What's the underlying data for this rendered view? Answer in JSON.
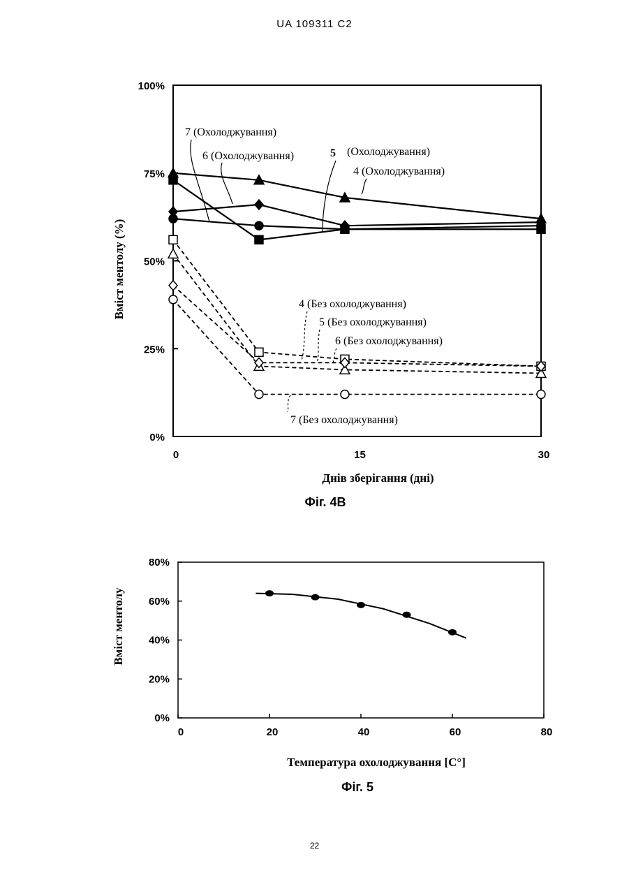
{
  "page": {
    "header": "UA  109311  C2",
    "page_number": "22"
  },
  "chart_data": [
    {
      "type": "line",
      "caption": "Фіг. 4В",
      "xlabel": "Днів зберігання (дні)",
      "ylabel": "Вміст ментолу (%)",
      "x_ticks": [
        "0",
        "15",
        "30"
      ],
      "y_ticks": [
        "0%",
        "25%",
        "50%",
        "75%",
        "100%"
      ],
      "xlim": [
        0,
        30
      ],
      "ylim": [
        0,
        100
      ],
      "x": [
        0,
        7,
        14,
        30
      ],
      "series": [
        {
          "name": "4 (Охолоджування)",
          "marker": "triangle",
          "filled": true,
          "dashed": false,
          "values": [
            75,
            73,
            68,
            62
          ]
        },
        {
          "name": "5 (Охолоджування)",
          "marker": "square",
          "filled": true,
          "dashed": false,
          "values": [
            73,
            56,
            59,
            59
          ]
        },
        {
          "name": "6 (Охолоджування)",
          "marker": "diamond",
          "filled": true,
          "dashed": false,
          "values": [
            64,
            66,
            60,
            61
          ]
        },
        {
          "name": "7 (Охолоджування)",
          "marker": "circle",
          "filled": true,
          "dashed": false,
          "values": [
            62,
            60,
            59,
            60
          ]
        },
        {
          "name": "4 (Без охолоджування)",
          "marker": "square",
          "filled": false,
          "dashed": true,
          "values": [
            56,
            24,
            22,
            20
          ]
        },
        {
          "name": "5 (Без охолоджування)",
          "marker": "triangle",
          "filled": false,
          "dashed": true,
          "values": [
            52,
            20,
            19,
            18
          ]
        },
        {
          "name": "6 (Без охолоджування)",
          "marker": "diamond",
          "filled": false,
          "dashed": true,
          "values": [
            43,
            21,
            21,
            20
          ]
        },
        {
          "name": "7 (Без охолоджування)",
          "marker": "circle",
          "filled": false,
          "dashed": true,
          "values": [
            39,
            12,
            12,
            12
          ]
        }
      ],
      "annotations": {
        "c7": "7 (Охолоджування)",
        "c6": "6 (Охолоджування)",
        "c5_num": "5",
        "c5_text": "(Охолоджування)",
        "c4": "4 (Охолоджування)",
        "n4": "4 (Без охолоджування)",
        "n5": "5 (Без охолоджування)",
        "n6": "6 (Без охолоджування)",
        "n7": "7 (Без охолоджування)"
      }
    },
    {
      "type": "line",
      "caption": "Фіг. 5",
      "xlabel": "Температура охолоджування [С°]",
      "ylabel": "Вміст ментолу",
      "x_ticks": [
        "0",
        "20",
        "40",
        "60",
        "80"
      ],
      "y_ticks": [
        "0%",
        "20%",
        "40%",
        "60%",
        "80%"
      ],
      "xlim": [
        0,
        80
      ],
      "ylim": [
        0,
        80
      ],
      "points": {
        "x": [
          20,
          30,
          40,
          50,
          60
        ],
        "y": [
          64,
          62,
          58,
          53,
          44
        ]
      },
      "trend": {
        "x": [
          17,
          25,
          35,
          45,
          55,
          63
        ],
        "y": [
          64,
          63.5,
          61,
          56,
          48.5,
          41
        ]
      }
    }
  ]
}
